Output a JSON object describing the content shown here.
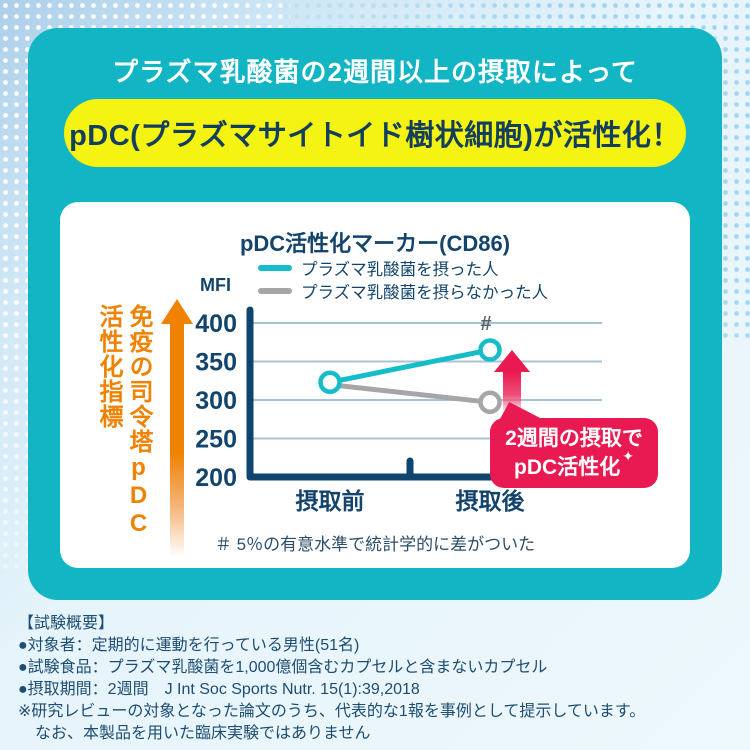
{
  "colors": {
    "teal_card": "#12b5c3",
    "teal_line": "#14bdc9",
    "yellow_highlight": "#f5f311",
    "navy_text": "#12446c",
    "orange_accent": "#ef8200",
    "red_accent": "#e91a51",
    "gray_line": "#a6a6a6",
    "grid_line": "#a9c3d6",
    "page_bg": "#e9f5fc"
  },
  "header": {
    "line1": "プラズマ乳酸菌の2週間以上の摂取によって",
    "highlight": "pDC(プラズマサイトイド樹状細胞)が活性化！"
  },
  "chart_data": {
    "type": "line",
    "title": "pDC活性化マーカー(CD86)",
    "unit_label": "MFI",
    "categories": [
      "摂取前",
      "摂取後"
    ],
    "series": [
      {
        "name": "プラズマ乳酸菌を摂った人",
        "color": "#14bdc9",
        "values": [
          323,
          365
        ],
        "marker_indices": [
          0,
          1
        ]
      },
      {
        "name": "プラズマ乳酸菌を摂らなかった人",
        "color": "#a6a6a6",
        "values": [
          320,
          297
        ],
        "marker_indices": [
          1
        ]
      }
    ],
    "ylim": [
      200,
      400
    ],
    "yticks": [
      200,
      250,
      300,
      350,
      400
    ],
    "grid": true,
    "legend_position": "top",
    "significance_marker": {
      "text": "#",
      "series": 0,
      "index": 1
    },
    "y_axis_concept_label_1": "免疫の司令塔pDC",
    "y_axis_concept_label_2": "活性化指標",
    "callout": {
      "line1": "2週間の摂取で",
      "line2": "pDC活性化",
      "sparkle": "✦"
    },
    "footnote": "＃ 5％の有意水準で統計学的に差がついた"
  },
  "study_overview": {
    "heading": "【試験概要】",
    "lines": [
      "●対象者：定期的に運動を行っている男性(51名)",
      "●試験食品：プラズマ乳酸菌を1,000億個含むカプセルと含まないカプセル",
      "●摂取期間：2週間　J Int Soc Sports Nutr. 15(1):39,2018",
      "※研究レビューの対象となった論文のうち、代表的な1報を事例として提示しています。",
      "なお、本製品を用いた臨床実験ではありません"
    ]
  }
}
